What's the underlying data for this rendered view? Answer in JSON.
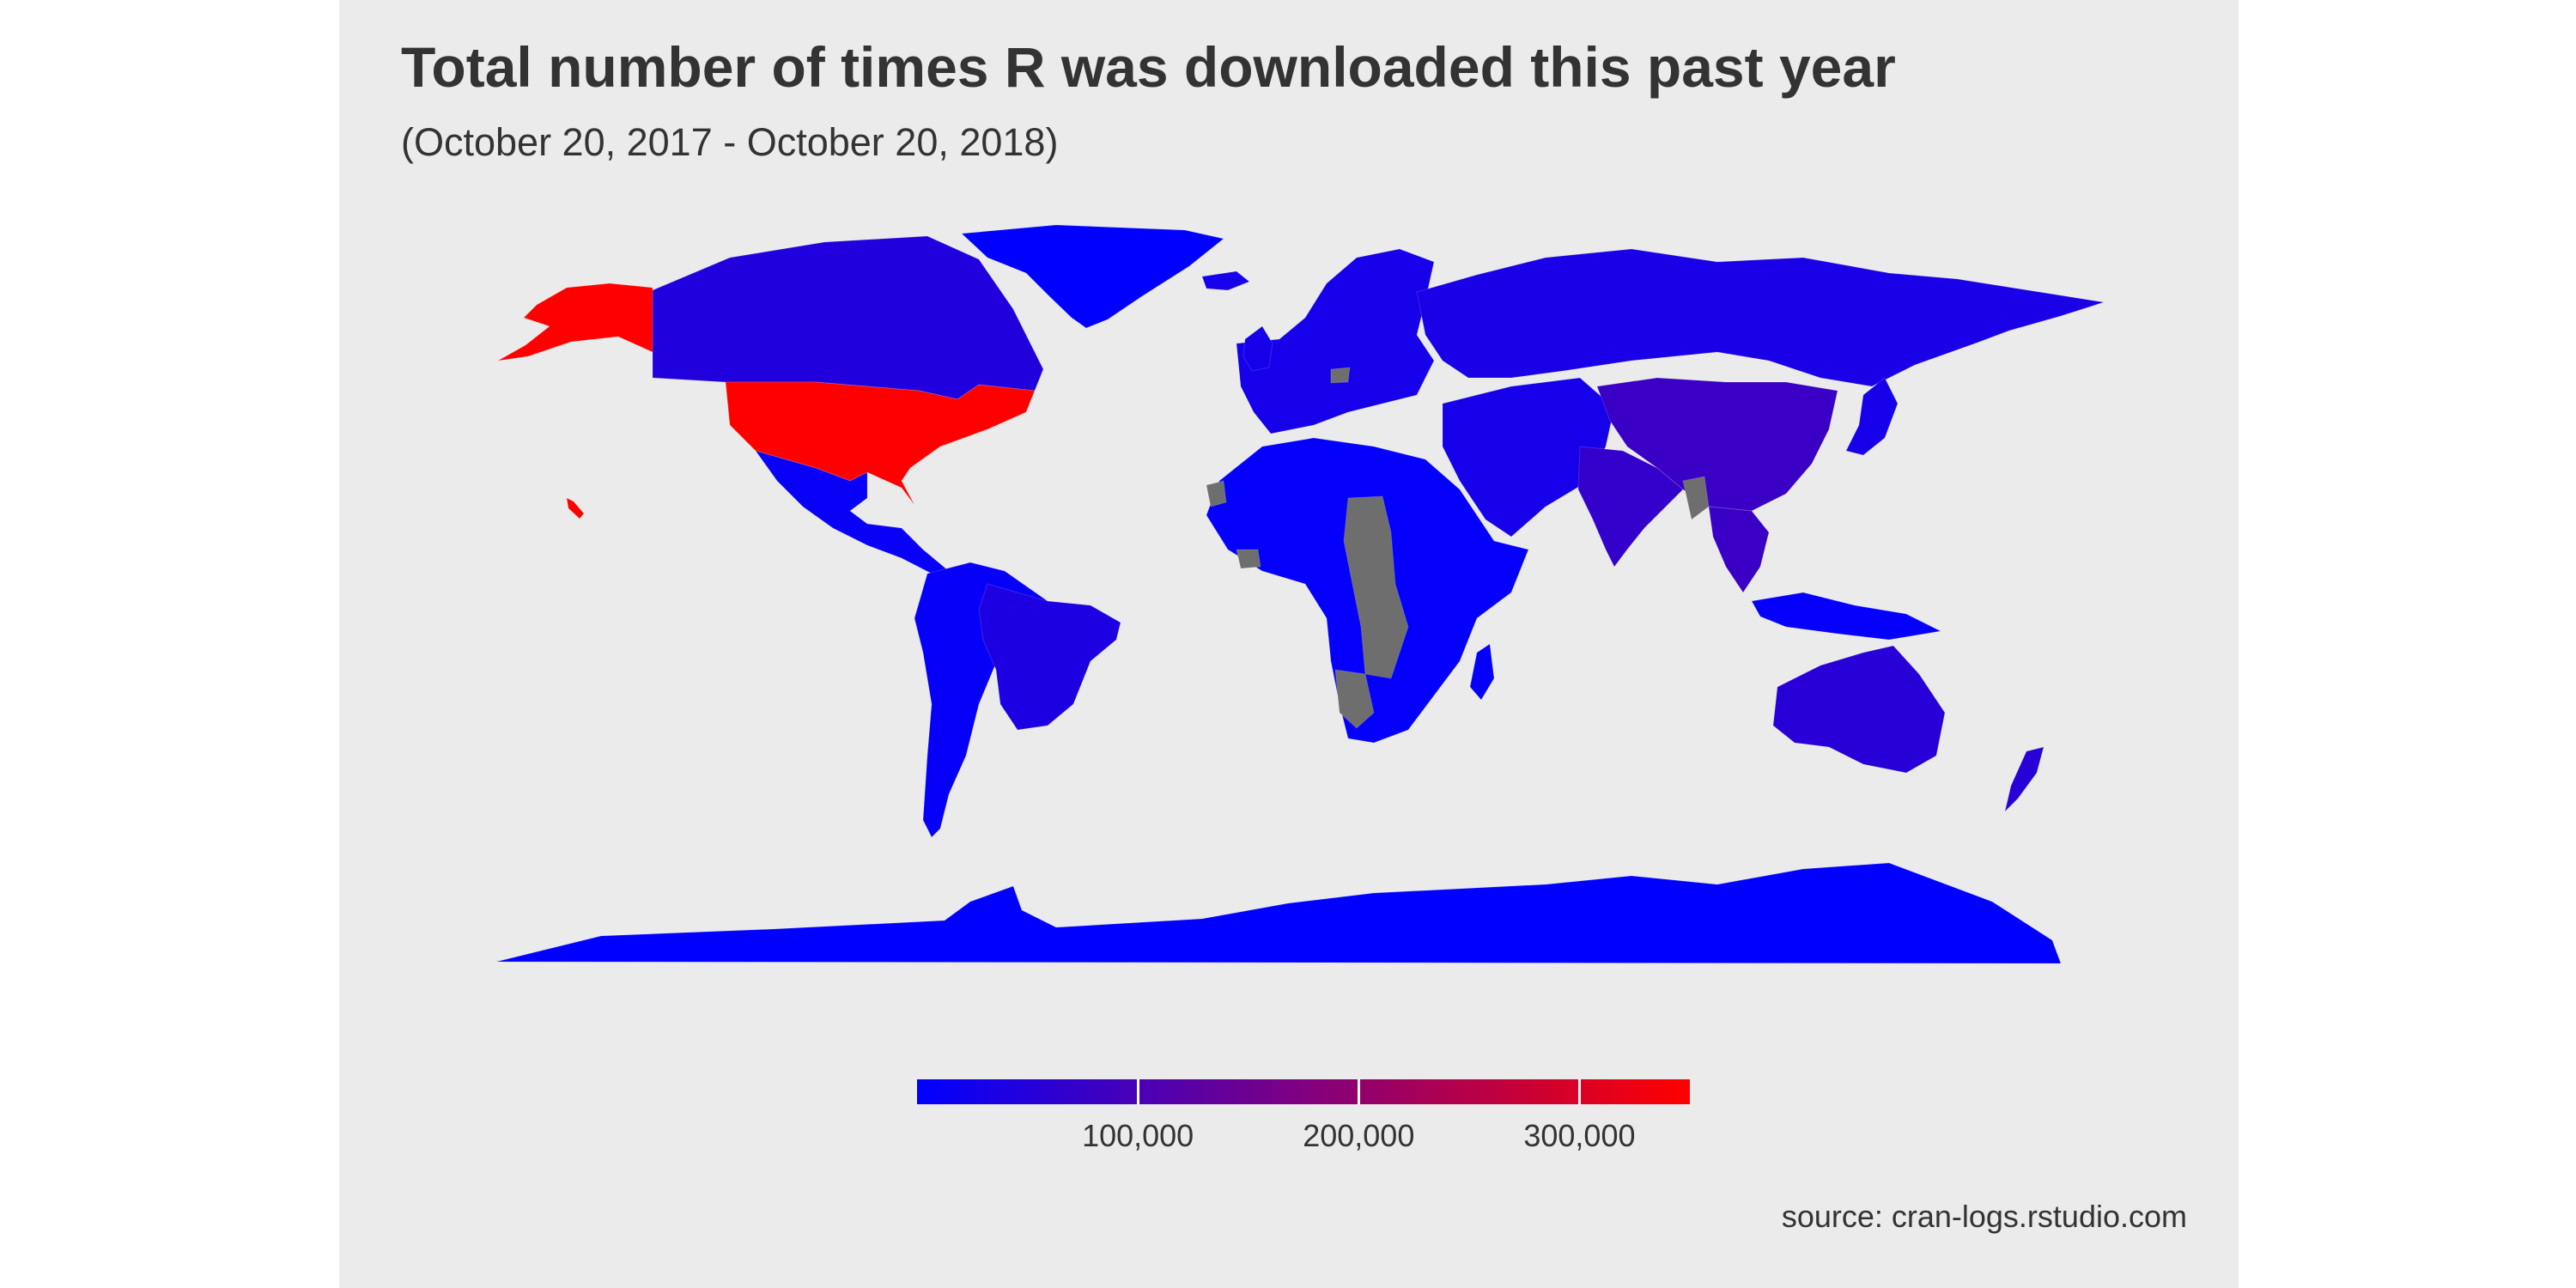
{
  "title": "Total number of times R was downloaded this past year",
  "subtitle": "(October 20, 2017 - October 20, 2018)",
  "caption": "source: cran-logs.rstudio.com",
  "colors": {
    "background": "#ebebeb",
    "low": "#0000ff",
    "high": "#ff0000",
    "missing": "#6e6e6e",
    "text": "#333333"
  },
  "legend": {
    "type": "colorbar",
    "min": 0,
    "max": 350000,
    "ticks": [
      {
        "value": 100000,
        "label": "100,000"
      },
      {
        "value": 200000,
        "label": "200,000"
      },
      {
        "value": 300000,
        "label": "300,000"
      }
    ]
  },
  "regions": [
    {
      "name": "United States",
      "value": 350000
    },
    {
      "name": "Canada",
      "value": 45000
    },
    {
      "name": "Greenland",
      "value": 0
    },
    {
      "name": "Mexico",
      "value": 12000
    },
    {
      "name": "Brazil",
      "value": 40000
    },
    {
      "name": "South America (other)",
      "value": 8000
    },
    {
      "name": "Russia",
      "value": 35000
    },
    {
      "name": "China",
      "value": 80000
    },
    {
      "name": "India",
      "value": 70000
    },
    {
      "name": "Australia",
      "value": 55000
    },
    {
      "name": "Europe",
      "value": 30000
    },
    {
      "name": "Africa",
      "value": 5000
    },
    {
      "name": "Antarctica",
      "value": 0
    }
  ]
}
